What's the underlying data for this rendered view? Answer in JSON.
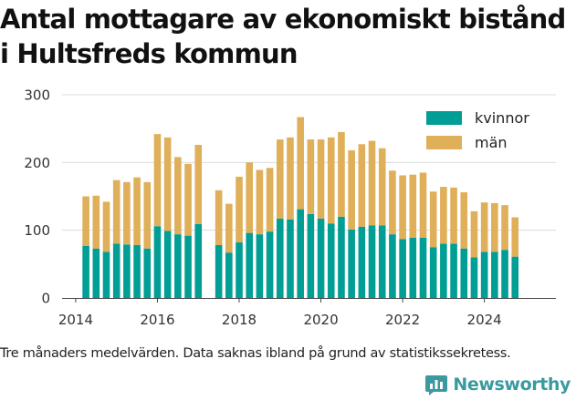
{
  "brand": {
    "name": "Newsworthy",
    "color": "#3a9aa0",
    "logo_icon": "bar-chart-speech-bubble-icon"
  },
  "caption": "Tre månaders medelvärden. Data saknas ibland på grund av statistikssekretess.",
  "chart_data": {
    "type": "bar",
    "stacked": true,
    "title": "Antal mottagare av ekonomiskt bistånd i Hultsfreds kommun",
    "xlabel": "",
    "ylabel": "",
    "ylim": [
      0,
      300
    ],
    "yticks": [
      0,
      100,
      200,
      300
    ],
    "xlim": [
      "2013-09-01",
      "2025-10-01"
    ],
    "xticks": [
      "2014",
      "2016",
      "2018",
      "2020",
      "2022",
      "2024"
    ],
    "grid": "horizontal",
    "legend_position": "top-right",
    "x": [
      "2014-04",
      "2014-07",
      "2014-10",
      "2015-01",
      "2015-04",
      "2015-07",
      "2015-10",
      "2016-01",
      "2016-04",
      "2016-07",
      "2016-10",
      "2017-01",
      "2017-07",
      "2017-10",
      "2018-01",
      "2018-04",
      "2018-07",
      "2018-10",
      "2019-01",
      "2019-04",
      "2019-07",
      "2019-10",
      "2020-01",
      "2020-04",
      "2020-07",
      "2020-10",
      "2021-01",
      "2021-04",
      "2021-07",
      "2021-10",
      "2022-01",
      "2022-04",
      "2022-07",
      "2022-10",
      "2023-01",
      "2023-04",
      "2023-07",
      "2023-10",
      "2024-01",
      "2024-04",
      "2024-07",
      "2024-10"
    ],
    "series": [
      {
        "name": "kvinnor",
        "color": "#009e94",
        "values": [
          77,
          73,
          68,
          80,
          79,
          78,
          73,
          106,
          99,
          94,
          92,
          109,
          78,
          67,
          82,
          96,
          94,
          98,
          117,
          116,
          131,
          124,
          117,
          110,
          120,
          101,
          105,
          107,
          107,
          94,
          87,
          89,
          89,
          75,
          80,
          80,
          73,
          60,
          68,
          68,
          71,
          61
        ]
      },
      {
        "name": "män",
        "color": "#dfaf59",
        "values": [
          73,
          78,
          74,
          94,
          92,
          100,
          98,
          136,
          138,
          114,
          106,
          117,
          81,
          72,
          97,
          104,
          95,
          94,
          117,
          121,
          136,
          110,
          117,
          127,
          125,
          117,
          122,
          125,
          114,
          94,
          94,
          93,
          96,
          82,
          84,
          83,
          83,
          68,
          73,
          72,
          66,
          58
        ]
      }
    ]
  }
}
